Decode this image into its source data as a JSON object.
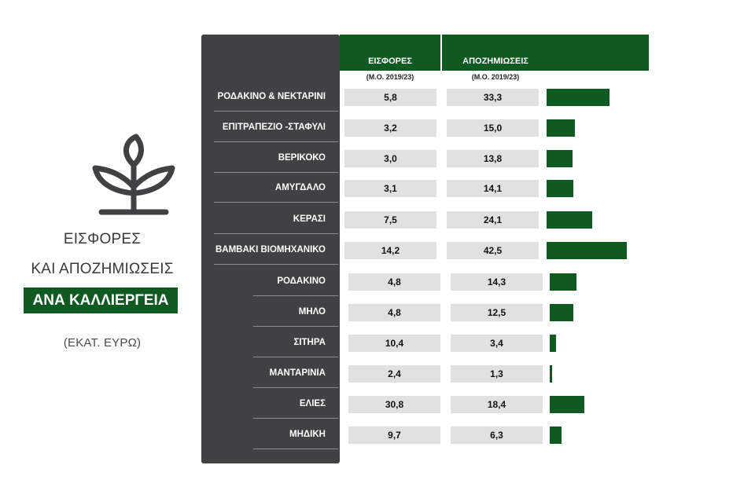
{
  "title": {
    "line1": "ΕΙΣΦΟΡΕΣ",
    "line2": "ΚΑΙ ΑΠΟΖΗΜΙΩΣΕΙΣ",
    "badge": "ΑΝΑ ΚΑΛΛΙΕΡΓΕΙΑ",
    "unit": "(ΕΚΑΤ. ΕΥΡΩ)"
  },
  "colors": {
    "green": "#0f5a22",
    "panel": "#414144",
    "cell": "#e1e1e2"
  },
  "headers": {
    "col1": "ΕΙΣΦΟΡΕΣ",
    "col1_sub": "(Μ.Ο. 2019/23)",
    "col2": "ΑΠΟΖΗΜΙΩΣΕΙΣ",
    "col2_sub": "(Μ.Ο. 2019/23)"
  },
  "chart_data": {
    "type": "table",
    "categories": [
      "ΡΟΔΑΚΙΝΟ & ΝΕΚΤΑΡΙΝΙ",
      "ΕΠΙΤΡΑΠΕΖΙΟ -ΣΤΑΦΥΛΙ",
      "ΒΕΡΙΚΟΚΟ",
      "ΑΜΥΓΔΑΛΟ",
      "ΚΕΡΑΣΙ",
      "ΒΑΜΒΑΚΙ ΒΙΟΜΗΧΑΝΙΚΟ",
      "ΡΟΔΑΚΙΝΟ",
      "ΜΗΛΟ",
      "ΣΙΤΗΡΑ",
      "ΜΑΝΤΑΡΙΝΙΑ",
      "ΕΛΙΕΣ",
      "ΜΗΔΙΚΗ"
    ],
    "series": [
      {
        "name": "ΕΙΣΦΟΡΕΣ",
        "values": [
          5.8,
          3.2,
          3.0,
          3.1,
          7.5,
          14.2,
          4.8,
          4.8,
          10.4,
          2.4,
          30.8,
          9.7
        ],
        "labels": [
          "5,8",
          "3,2",
          "3,0",
          "3,1",
          "7,5",
          "14,2",
          "4,8",
          "4,8",
          "10,4",
          "2,4",
          "30,8",
          "9,7"
        ]
      },
      {
        "name": "ΑΠΟΖΗΜΙΩΣΕΙΣ",
        "values": [
          33.3,
          15.0,
          13.8,
          14.1,
          24.1,
          42.5,
          14.3,
          12.5,
          3.4,
          1.3,
          18.4,
          6.3
        ],
        "labels": [
          "33,3",
          "15,0",
          "13,8",
          "14,1",
          "24,1",
          "42,5",
          "14,3",
          "12,5",
          "3,4",
          "1,3",
          "18,4",
          "6,3"
        ]
      }
    ],
    "bars_represent": "ΑΠΟΖΗΜΙΩΣΕΙΣ"
  }
}
